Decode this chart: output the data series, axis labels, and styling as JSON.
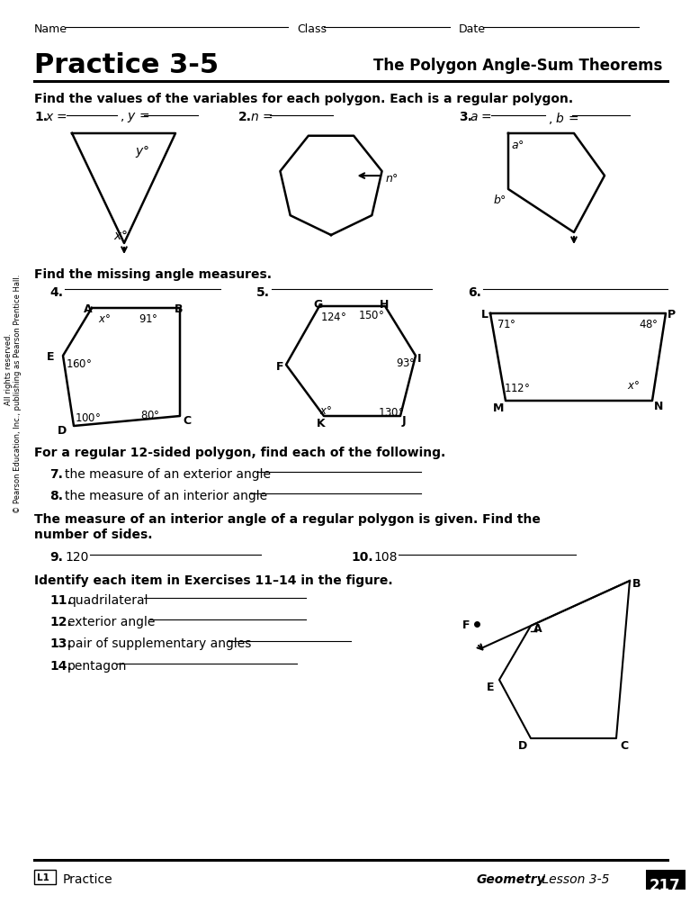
{
  "bg_color": "#ffffff",
  "title": "Practice 3-5",
  "subtitle": "The Polygon Angle-Sum Theorems",
  "sec1_instr": "Find the values of the variables for each polygon. Each is a regular polygon.",
  "sec2_instr": "Find the missing angle measures.",
  "sec3_instr": "For a regular 12-sided polygon, find each of the following.",
  "sec4_instr1": "The measure of an interior angle of a regular polygon is given. Find the",
  "sec4_instr2": "number of sides.",
  "sec5_instr": "Identify each item in Exercises 11–14 in the figure.",
  "prob1_label": "1.",
  "prob1_text": "x = _______ , y = _______",
  "prob2_label": "2.",
  "prob2_text": "n = _______",
  "prob3_label": "3.",
  "prob3_text": "a = _______ , b = _______",
  "prob4_label": "4.",
  "prob5_label": "5.",
  "prob6_label": "6.",
  "prob7_text": "the measure of an exterior angle",
  "prob8_text": "the measure of an interior angle",
  "prob9_val": "120",
  "prob10_val": "108",
  "items_11_14": [
    "quadrilateral",
    "exterior angle",
    "pair of supplementary angles",
    "pentagon"
  ],
  "footer_l1": "L1",
  "footer_practice": "Practice",
  "footer_geo": "Geometry",
  "footer_lesson": " Lesson 3-5",
  "footer_page": "217",
  "dot_color": "#000000",
  "line_color": "#000000"
}
